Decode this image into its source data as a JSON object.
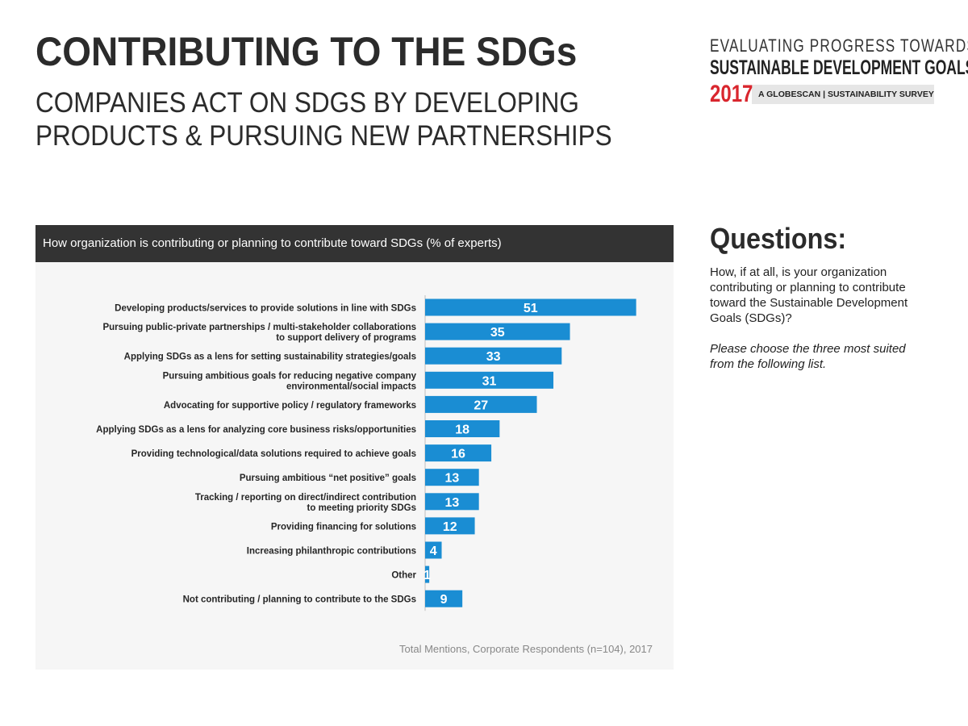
{
  "page": {
    "title": "CONTRIBUTING TO THE SDGs",
    "subtitle_lines": [
      "COMPANIES ACT ON SDGS BY DEVELOPING",
      "PRODUCTS & PURSUING NEW PARTNERSHIPS"
    ]
  },
  "brand": {
    "line1": "EVALUATING PROGRESS TOWARDS THE",
    "line2": "SUSTAINABLE DEVELOPMENT GOALS",
    "year": "2017",
    "tagline": "A GLOBESCAN | SUSTAINABILITY SURVEY",
    "accent_color": "#d9262e"
  },
  "questions": {
    "heading": "Questions:",
    "question": "How, if at all, is your organization contributing or planning to contribute toward the Sustainable Development Goals (SDGs)?",
    "instruction": "Please choose the three most suited from the following list."
  },
  "chart_data": {
    "type": "bar",
    "orientation": "horizontal",
    "title": "How organization is contributing or planning to contribute toward SDGs (% of experts)",
    "footnote": "Total Mentions, Corporate Respondents (n=104), 2017",
    "bar_color": "#1a8dd3",
    "value_label_color": "#ffffff",
    "xlim": [
      0,
      100
    ],
    "grid": false,
    "categories": [
      [
        "Developing products/services to provide solutions in line with SDGs"
      ],
      [
        "Pursuing public-private partnerships / multi-stakeholder collaborations",
        "to support delivery of programs"
      ],
      [
        "Applying SDGs as a lens for setting sustainability strategies/goals"
      ],
      [
        "Pursuing ambitious goals for reducing negative company",
        "environmental/social impacts"
      ],
      [
        "Advocating for supportive policy / regulatory frameworks"
      ],
      [
        "Applying SDGs as a lens for analyzing core business risks/opportunities"
      ],
      [
        "Providing technological/data solutions required to achieve goals"
      ],
      [
        "Pursuing ambitious “net positive” goals"
      ],
      [
        "Tracking / reporting on direct/indirect contribution",
        "to meeting priority SDGs"
      ],
      [
        "Providing financing for solutions"
      ],
      [
        "Increasing philanthropic contributions"
      ],
      [
        "Other"
      ],
      [
        "Not contributing / planning to contribute to the SDGs"
      ]
    ],
    "values": [
      51,
      35,
      33,
      31,
      27,
      18,
      16,
      13,
      13,
      12,
      4,
      1,
      9
    ]
  }
}
